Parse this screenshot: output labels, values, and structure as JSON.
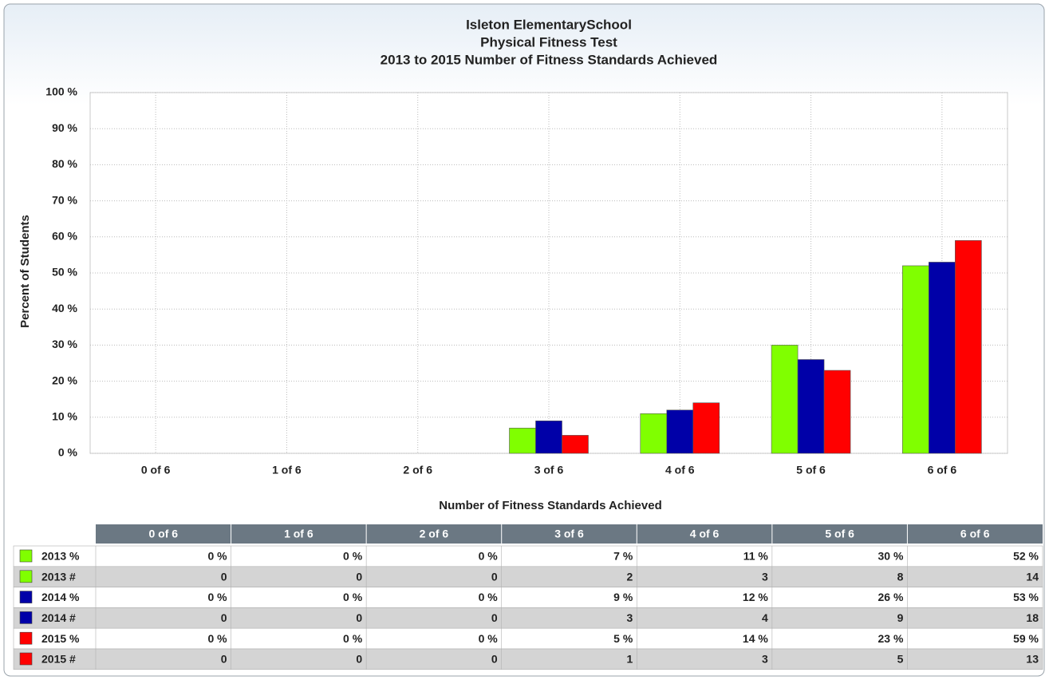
{
  "chart_data": {
    "type": "bar",
    "title": [
      "Isleton ElementarySchool",
      "Physical Fitness Test",
      "2013 to 2015 Number of Fitness Standards Achieved"
    ],
    "y_label": "Percent of Students",
    "x_label": "Number of Fitness Standards Achieved",
    "categories": [
      "0 of 6",
      "1 of 6",
      "2 of 6",
      "3 of 6",
      "4 of 6",
      "5 of 6",
      "6 of 6"
    ],
    "series": [
      {
        "name": "2013 %",
        "color": "#80ff00",
        "values": [
          0,
          0,
          0,
          7,
          11,
          30,
          52
        ],
        "value_labels": [
          "0 %",
          "0 %",
          "0 %",
          "7 %",
          "11 %",
          "30 %",
          "52 %"
        ]
      },
      {
        "name": "2014 %",
        "color": "#0000a8",
        "values": [
          0,
          0,
          0,
          9,
          12,
          26,
          53
        ],
        "value_labels": [
          "0 %",
          "0 %",
          "0 %",
          "9 %",
          "12 %",
          "26 %",
          "53 %"
        ]
      },
      {
        "name": "2015 %",
        "color": "#ff0000",
        "values": [
          0,
          0,
          0,
          5,
          14,
          23,
          59
        ],
        "value_labels": [
          "0 %",
          "0 %",
          "0 %",
          "5 %",
          "14 %",
          "23 %",
          "59 %"
        ]
      }
    ],
    "ylim": [
      0,
      100
    ],
    "yticks": [
      {
        "value": 0,
        "label": "0 %"
      },
      {
        "value": 10,
        "label": "10 %"
      },
      {
        "value": 20,
        "label": "20 %"
      },
      {
        "value": 30,
        "label": "30 %"
      },
      {
        "value": 40,
        "label": "40 %"
      },
      {
        "value": 50,
        "label": "50 %"
      },
      {
        "value": 60,
        "label": "60 %"
      },
      {
        "value": 70,
        "label": "70 %"
      },
      {
        "value": 80,
        "label": "80 %"
      },
      {
        "value": 90,
        "label": "90 %"
      },
      {
        "value": 100,
        "label": "100 %"
      }
    ],
    "grid": true
  },
  "table": {
    "rows": [
      {
        "name": "2013 #",
        "values": [
          0,
          0,
          0,
          2,
          3,
          8,
          14
        ]
      },
      {
        "name": "2014 #",
        "values": [
          0,
          0,
          0,
          3,
          4,
          9,
          18
        ]
      },
      {
        "name": "2015 #",
        "values": [
          0,
          0,
          0,
          1,
          3,
          5,
          13
        ]
      }
    ]
  }
}
